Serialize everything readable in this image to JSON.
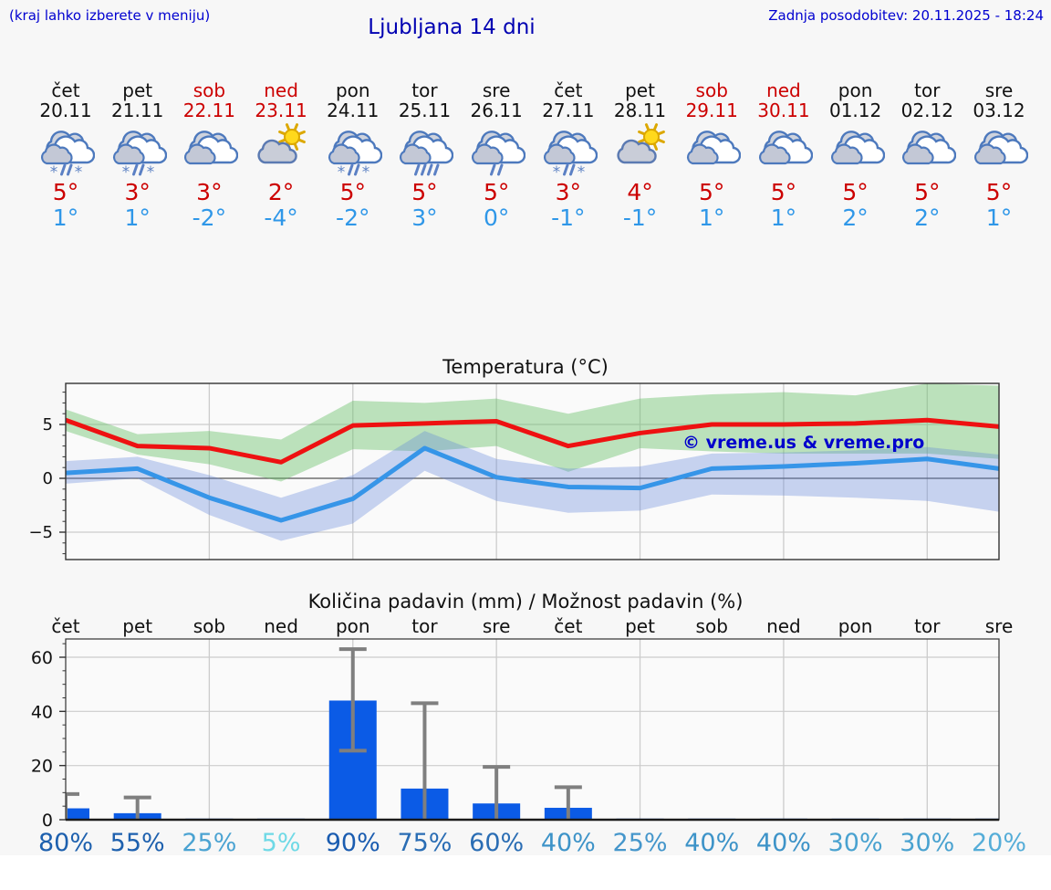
{
  "header": {
    "hint": "(kraj lahko izberete v meniju)",
    "title": "Ljubljana 14 dni",
    "updated": "Zadnja posodobitev: 20.11.2025 - 18:24"
  },
  "colors": {
    "blue_text": "#0000d0",
    "holiday_red": "#cc0000",
    "tmax_text": "#cc0000",
    "tmin_text": "#2f97e8"
  },
  "days": [
    {
      "name": "čet",
      "date": "20.11",
      "red": false,
      "icon": "rain-snow",
      "tmax": "5°",
      "tmin": "1°"
    },
    {
      "name": "pet",
      "date": "21.11",
      "red": false,
      "icon": "rain-snow",
      "tmax": "3°",
      "tmin": "1°"
    },
    {
      "name": "sob",
      "date": "22.11",
      "red": true,
      "icon": "cloudy",
      "tmax": "3°",
      "tmin": "-2°"
    },
    {
      "name": "ned",
      "date": "23.11",
      "red": true,
      "icon": "partly-sunny",
      "tmax": "2°",
      "tmin": "-4°"
    },
    {
      "name": "pon",
      "date": "24.11",
      "red": false,
      "icon": "rain-snow",
      "tmax": "5°",
      "tmin": "-2°"
    },
    {
      "name": "tor",
      "date": "25.11",
      "red": false,
      "icon": "rain",
      "tmax": "5°",
      "tmin": "3°"
    },
    {
      "name": "sre",
      "date": "26.11",
      "red": false,
      "icon": "light-rain",
      "tmax": "5°",
      "tmin": "0°"
    },
    {
      "name": "čet",
      "date": "27.11",
      "red": false,
      "icon": "rain-snow",
      "tmax": "3°",
      "tmin": "-1°"
    },
    {
      "name": "pet",
      "date": "28.11",
      "red": false,
      "icon": "partly-sunny",
      "tmax": "4°",
      "tmin": "-1°"
    },
    {
      "name": "sob",
      "date": "29.11",
      "red": true,
      "icon": "cloudy",
      "tmax": "5°",
      "tmin": "1°"
    },
    {
      "name": "ned",
      "date": "30.11",
      "red": true,
      "icon": "cloudy",
      "tmax": "5°",
      "tmin": "1°"
    },
    {
      "name": "pon",
      "date": "01.12",
      "red": false,
      "icon": "cloudy",
      "tmax": "5°",
      "tmin": "2°"
    },
    {
      "name": "tor",
      "date": "02.12",
      "red": false,
      "icon": "cloudy",
      "tmax": "5°",
      "tmin": "2°"
    },
    {
      "name": "sre",
      "date": "03.12",
      "red": false,
      "icon": "cloudy",
      "tmax": "5°",
      "tmin": "1°"
    }
  ],
  "chart_data": [
    {
      "type": "line",
      "title": "Temperatura (°C)",
      "watermark": "© vreme.us & vreme.pro",
      "x_labels": [
        "20.11",
        "21.11",
        "22.11",
        "23.11",
        "24.11",
        "25.11",
        "26.11",
        "27.11",
        "28.11",
        "29.11",
        "30.11",
        "01.12",
        "02.12",
        "03.12"
      ],
      "ylim": [
        -7.5,
        8.8
      ],
      "yticks": [
        5,
        0,
        -5
      ],
      "grid_x_indices": [
        2,
        4,
        6,
        8,
        10,
        12
      ],
      "series": [
        {
          "key": "tmax",
          "name": "max temperatura",
          "color": "#ee1111",
          "band_color": "rgba(100,190,100,0.42)",
          "values": [
            5.4,
            3.0,
            2.8,
            1.5,
            4.9,
            5.1,
            5.3,
            3.0,
            4.2,
            5.0,
            5.0,
            5.1,
            5.4,
            4.8
          ],
          "band_hi": [
            6.4,
            4.1,
            4.4,
            3.6,
            7.2,
            7.0,
            7.4,
            6.0,
            7.4,
            7.8,
            8.0,
            7.7,
            8.8,
            8.6
          ],
          "band_lo": [
            4.4,
            2.2,
            1.3,
            -0.3,
            2.7,
            2.5,
            3.0,
            0.6,
            2.8,
            2.5,
            2.3,
            2.3,
            2.3,
            1.8
          ]
        },
        {
          "key": "tmin",
          "name": "min temperatura",
          "color": "#3695e8",
          "band_color": "rgba(95,130,220,0.33)",
          "values": [
            0.5,
            0.9,
            -1.8,
            -3.9,
            -1.9,
            2.8,
            0.1,
            -0.8,
            -0.9,
            0.9,
            1.1,
            1.4,
            1.8,
            0.9
          ],
          "band_hi": [
            1.6,
            2.0,
            0.3,
            -1.8,
            0.3,
            4.4,
            1.8,
            0.9,
            1.1,
            2.3,
            2.4,
            2.6,
            2.9,
            2.2
          ],
          "band_lo": [
            -0.5,
            0.0,
            -3.4,
            -5.8,
            -4.2,
            0.7,
            -2.1,
            -3.2,
            -3.0,
            -1.5,
            -1.6,
            -1.8,
            -2.1,
            -3.1
          ]
        }
      ]
    },
    {
      "type": "bar",
      "title": "Količina padavin (mm) / Možnost padavin (%)",
      "x_labels": [
        "čet",
        "pet",
        "sob",
        "ned",
        "pon",
        "tor",
        "sre",
        "čet",
        "pet",
        "sob",
        "ned",
        "pon",
        "tor",
        "sre"
      ],
      "ylim": [
        0,
        66.5
      ],
      "yticks": [
        60,
        40,
        20,
        0
      ],
      "grid_x_indices": [
        2,
        4,
        6,
        8,
        10,
        12
      ],
      "values_mm": [
        4.2,
        2.4,
        0.4,
        0.4,
        44,
        11.5,
        6,
        4.4,
        0.4,
        0.4,
        0.4,
        0.4,
        0.4,
        0.4
      ],
      "error_hi": [
        9.5,
        8.2,
        0,
        0,
        63,
        43,
        19.5,
        12,
        0,
        0,
        0,
        0,
        0,
        0
      ],
      "error_lo": [
        0,
        0,
        0,
        0,
        25.5,
        0,
        0,
        0,
        0,
        0,
        0,
        0,
        0,
        0
      ],
      "bar_color": "#0b5be6",
      "error_color": "#7f7f7f",
      "percents": [
        {
          "label": "80%",
          "color": "#1d60ae"
        },
        {
          "label": "55%",
          "color": "#1d60ae"
        },
        {
          "label": "25%",
          "color": "#4ba3d2"
        },
        {
          "label": "5%",
          "color": "#6fd9e6"
        },
        {
          "label": "90%",
          "color": "#1a5cb0"
        },
        {
          "label": "75%",
          "color": "#2a6db4"
        },
        {
          "label": "60%",
          "color": "#2a6db4"
        },
        {
          "label": "40%",
          "color": "#3d93c8"
        },
        {
          "label": "25%",
          "color": "#4596cb"
        },
        {
          "label": "40%",
          "color": "#3d93c8"
        },
        {
          "label": "40%",
          "color": "#3d93c8"
        },
        {
          "label": "30%",
          "color": "#49a2d0"
        },
        {
          "label": "30%",
          "color": "#49a2d0"
        },
        {
          "label": "20%",
          "color": "#55add8"
        }
      ]
    }
  ]
}
